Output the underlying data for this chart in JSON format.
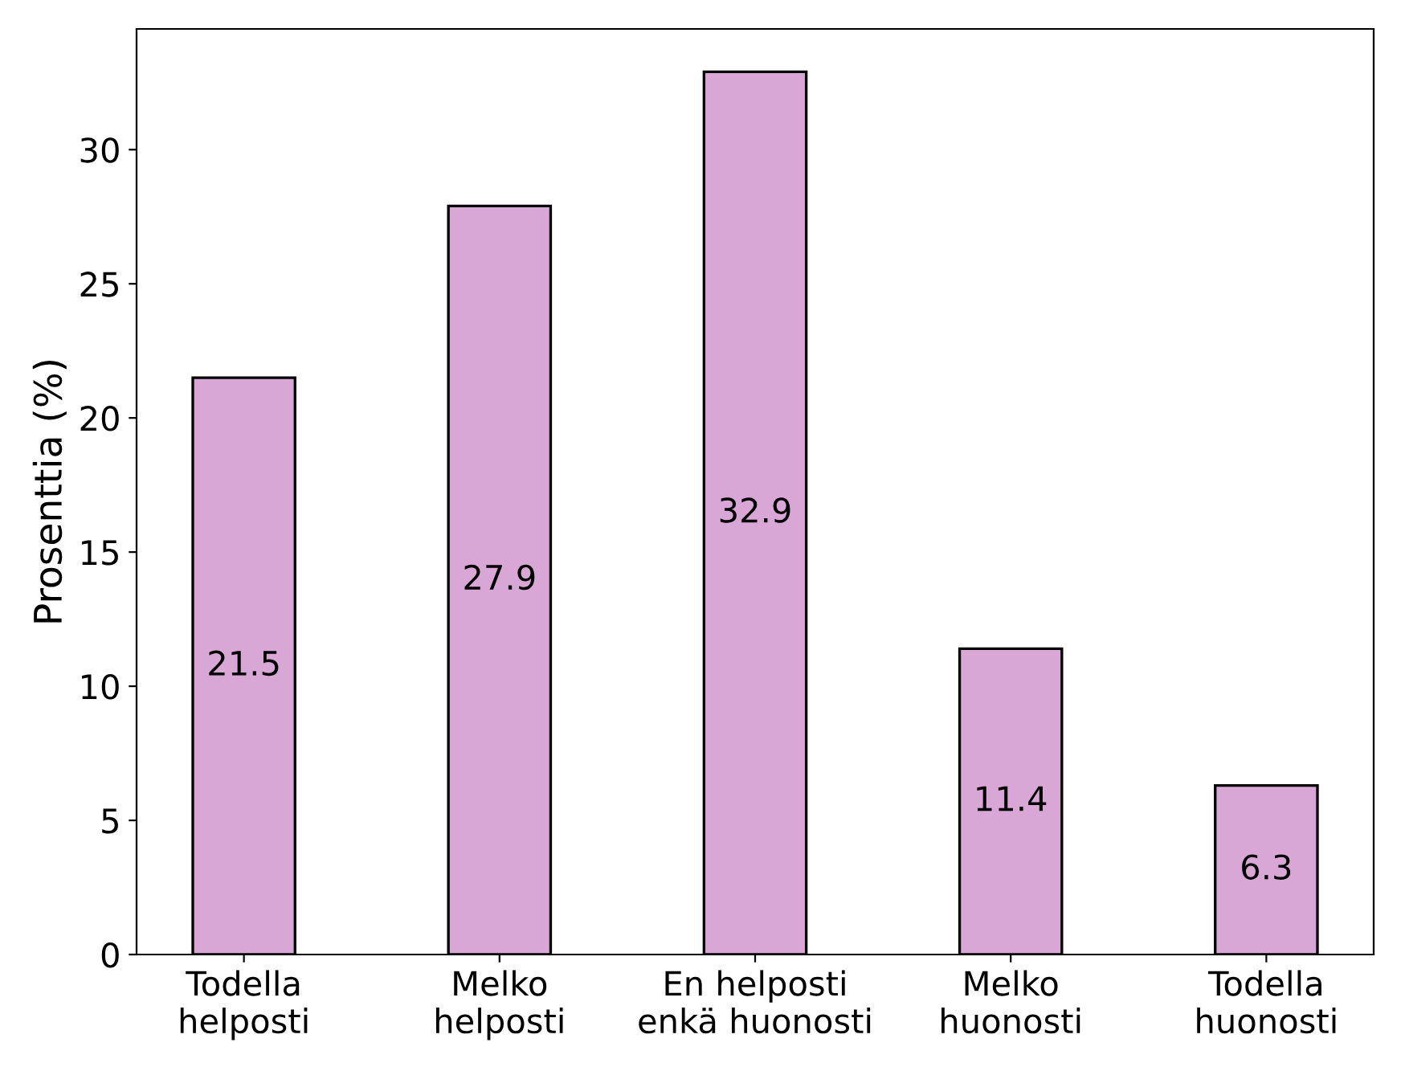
{
  "chart_data": {
    "type": "bar",
    "ylabel": "Prosenttia (%)",
    "categories": [
      "Todella\nhelposti",
      "Melko\nhelposti",
      "En helposti\nenkä huonosti",
      "Melko\nhuonosti",
      "Todella\nhuonosti"
    ],
    "values": [
      21.5,
      27.9,
      32.9,
      11.4,
      6.3
    ],
    "color": "#d8a7d6",
    "ylim": [
      0,
      34.5
    ],
    "yticks": [
      0,
      5,
      10,
      15,
      20,
      25,
      30
    ],
    "data_labels": true,
    "grid": false
  }
}
